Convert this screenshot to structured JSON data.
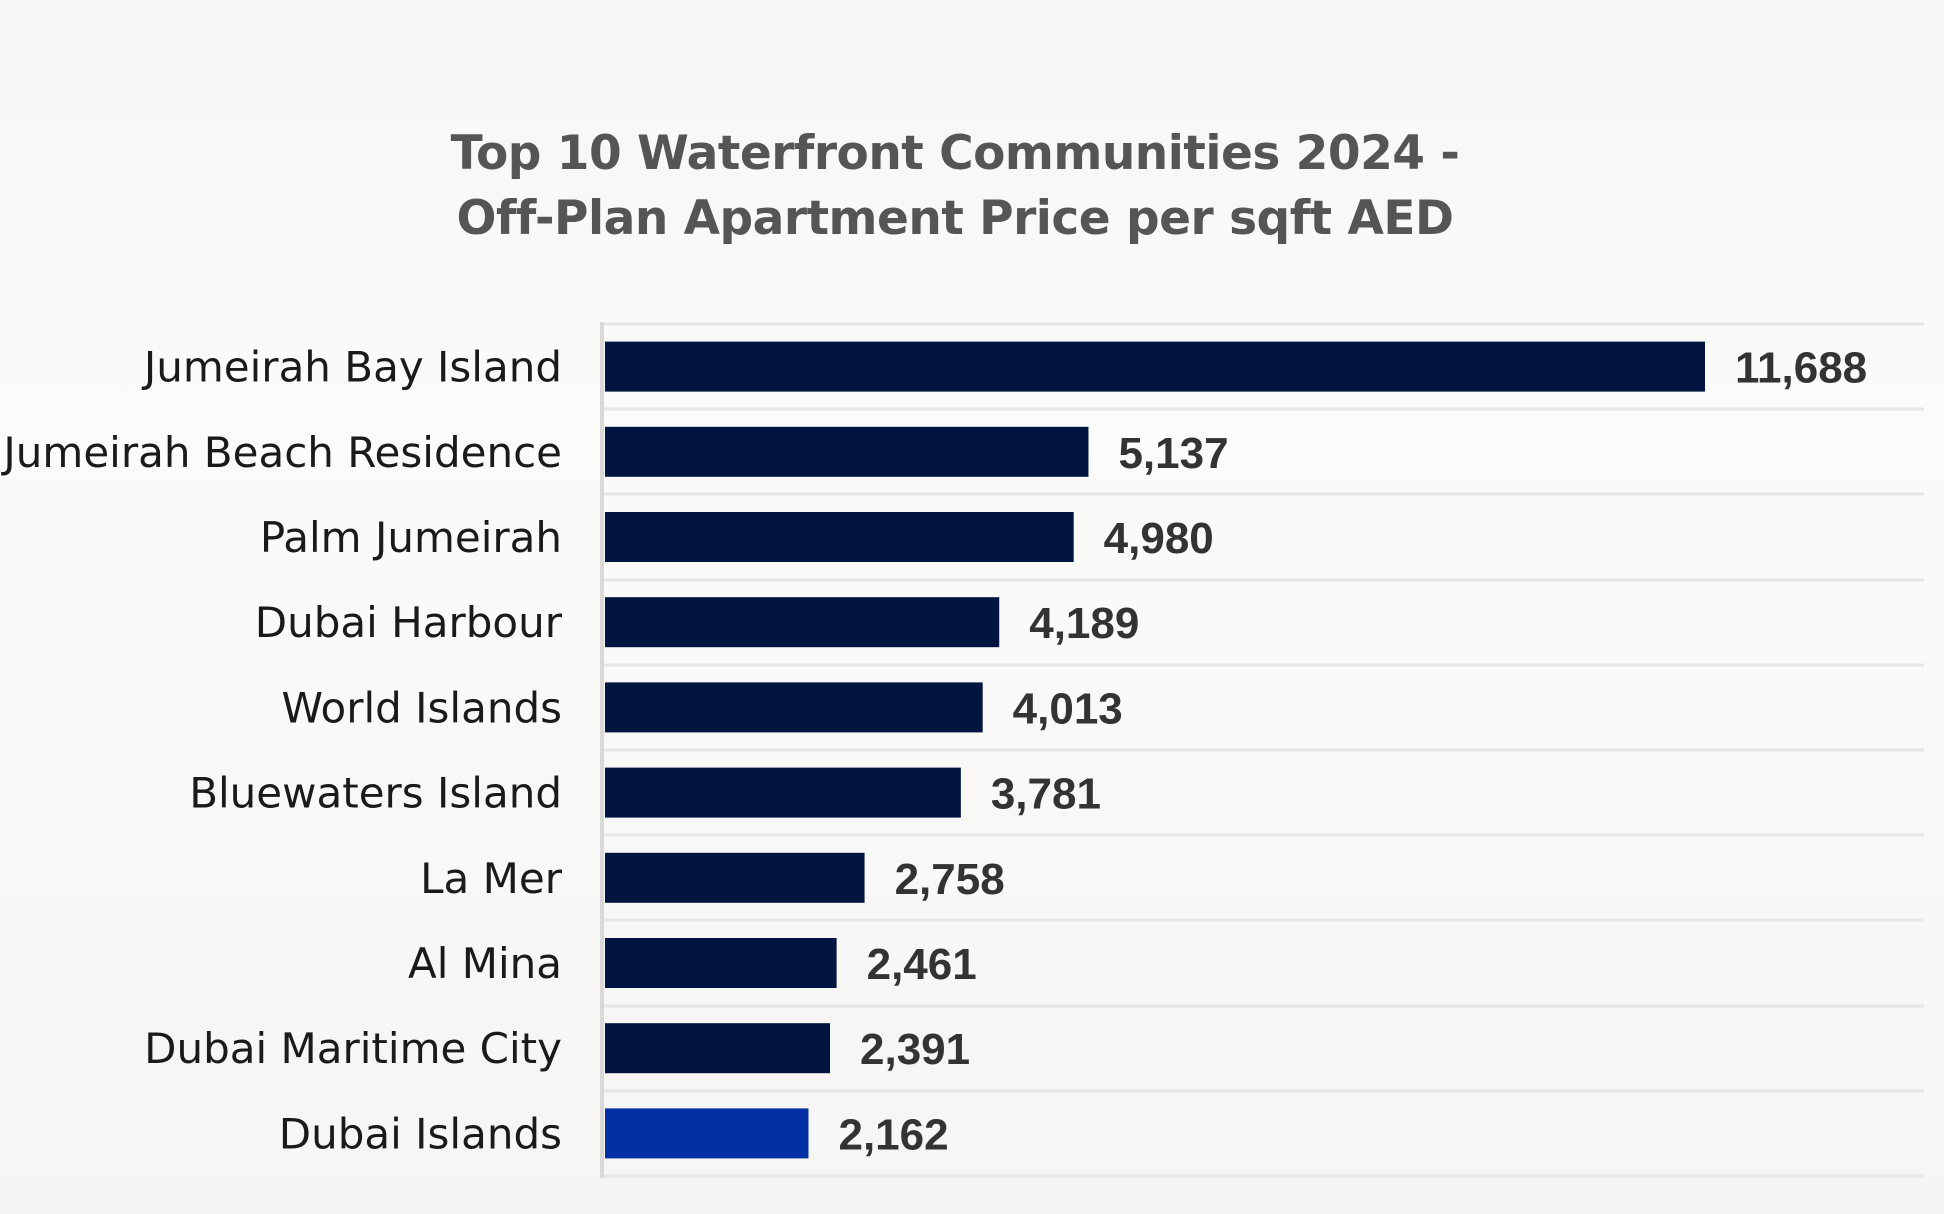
{
  "chart_data": {
    "type": "bar",
    "orientation": "horizontal",
    "title_lines": [
      "Top 10 Waterfront Communities 2024 -",
      "Off-Plan Apartment Price per sqft AED"
    ],
    "categories": [
      "Jumeirah Bay Island",
      "Jumeirah Beach Residence",
      "Palm Jumeirah",
      "Dubai Harbour",
      "World Islands",
      "Bluewaters Island",
      "La Mer",
      "Al Mina",
      "Dubai Maritime City",
      "Dubai Islands"
    ],
    "values": [
      11688,
      5137,
      4980,
      4189,
      4013,
      3781,
      2758,
      2461,
      2391,
      2162
    ],
    "value_labels": [
      "11,688",
      "5,137",
      "4,980",
      "4,189",
      "4,013",
      "3,781",
      "2,758",
      "2,461",
      "2,391",
      "2,162"
    ],
    "xlim": [
      0,
      11688
    ],
    "xlabel": "",
    "ylabel": "",
    "grid": true,
    "legend": "none",
    "highlight_category": "Dubai Islands",
    "colors": {
      "bar": "#021541",
      "highlight": "#0430a6",
      "gridline": "#e6e6e6",
      "axis": "#d9d9d9"
    }
  }
}
